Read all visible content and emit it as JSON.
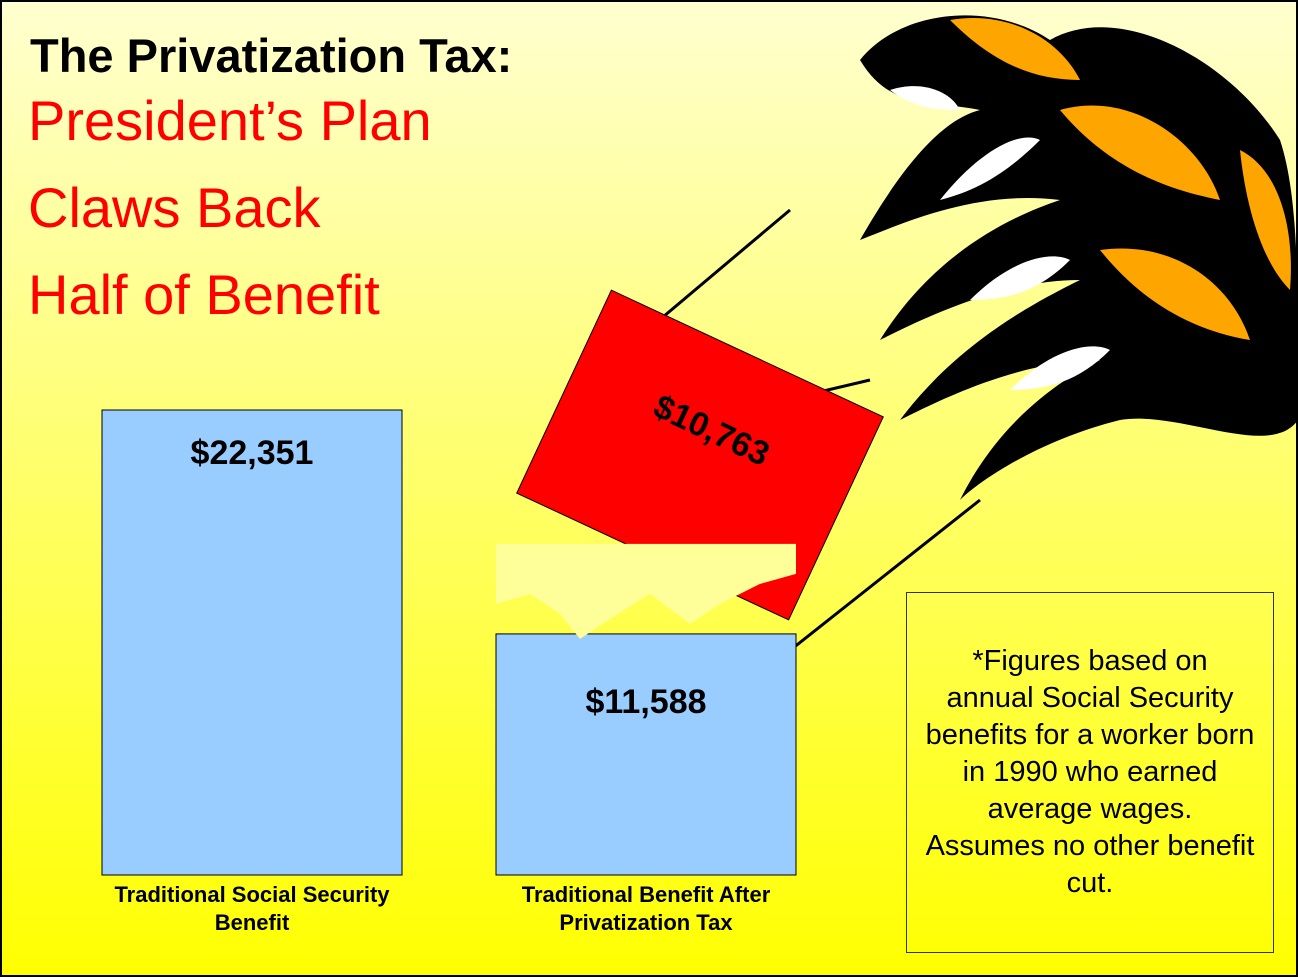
{
  "chart_data": {
    "type": "bar",
    "title": "The Privatization Tax:",
    "subtitle": [
      "President’s Plan",
      "Claws Back",
      "Half of Benefit"
    ],
    "categories": [
      "Traditional Social Security Benefit",
      "Traditional Benefit After Privatization Tax"
    ],
    "values": [
      22351,
      11588
    ],
    "value_labels": [
      "$22,351",
      "$11,588"
    ],
    "color": "#99ccff",
    "clawed_back": {
      "value": 10763,
      "label": "$10,763",
      "color": "#ff0000"
    },
    "note": "*Figures based on annual Social Security benefits for a worker born in 1990 who earned average wages. Assumes no other benefit cut."
  }
}
